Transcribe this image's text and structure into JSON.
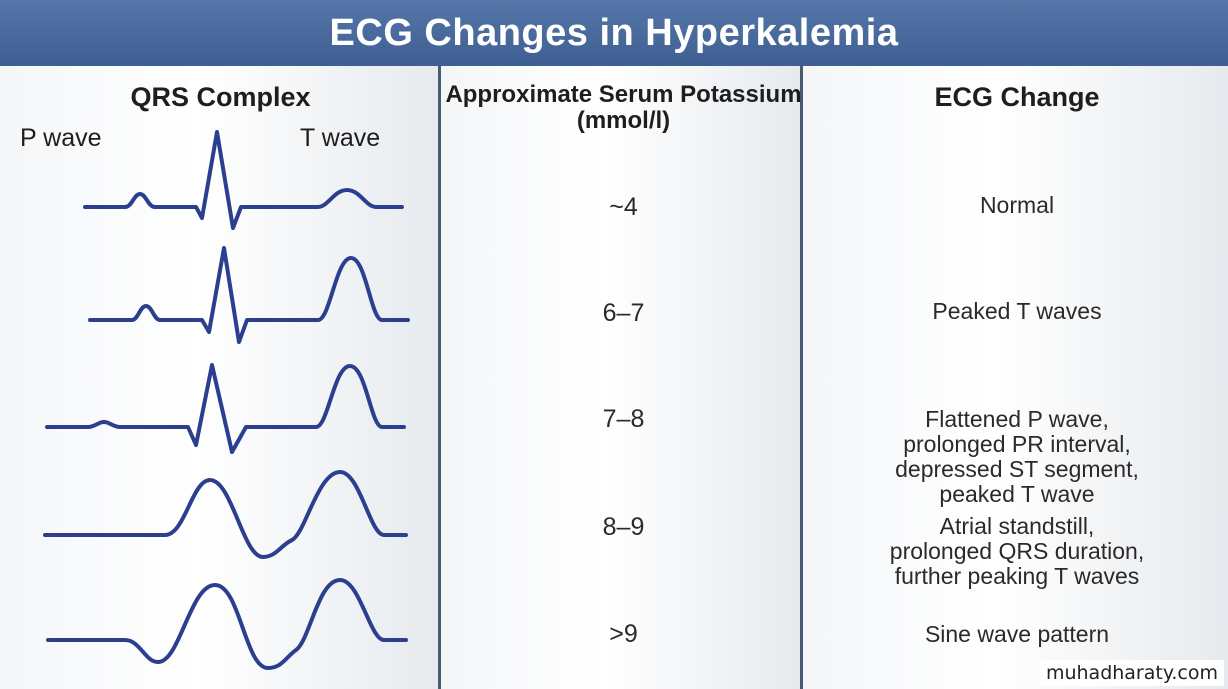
{
  "title": "ECG Changes in Hyperkalemia",
  "columns": {
    "qrs": "QRS Complex",
    "serum": "Approximate Serum Potassium (mmol/l)",
    "change": "ECG Change"
  },
  "wave_labels": {
    "p": "P wave",
    "t": "T wave"
  },
  "rows": [
    {
      "potassium": "~4",
      "change": [
        "Normal"
      ]
    },
    {
      "potassium": "6–7",
      "change": [
        "Peaked T waves"
      ]
    },
    {
      "potassium": "7–8",
      "change": [
        "Flattened P wave,",
        "prolonged PR interval,",
        "depressed ST segment,",
        "peaked T wave"
      ]
    },
    {
      "potassium": "8–9",
      "change": [
        "Atrial standstill,",
        "prolonged QRS duration,",
        "further peaking T waves"
      ]
    },
    {
      "potassium": ">9",
      "change": [
        "Sine wave pattern"
      ]
    }
  ],
  "watermark": "muhadharaty.com",
  "colors": {
    "header": "#4a6a9e",
    "wave": "#2c3f8f",
    "divider": "#4a5a70"
  }
}
